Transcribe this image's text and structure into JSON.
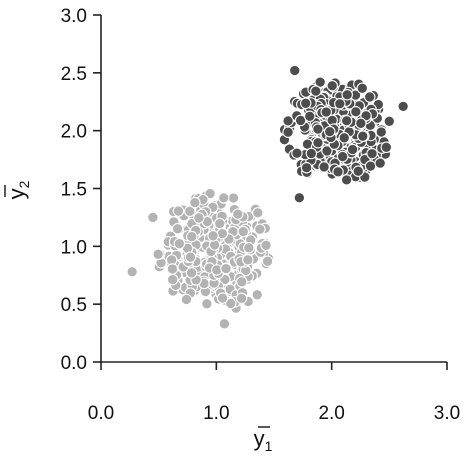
{
  "chart_data": {
    "type": "scatter",
    "title": "",
    "xlabel": "y",
    "xlabel_subscript": "1",
    "ylabel": "y",
    "ylabel_subscript": "2",
    "xlim": [
      0.0,
      3.0
    ],
    "ylim": [
      0.0,
      3.0
    ],
    "x_ticks": [
      "0.0",
      "1.0",
      "2.0",
      "3.0"
    ],
    "y_ticks": [
      "0.0",
      "0.5",
      "1.0",
      "1.5",
      "2.0",
      "2.5",
      "3.0"
    ],
    "grid": false,
    "legend": "none",
    "series": [
      {
        "color": "#b3b3b3",
        "center": [
          1.0,
          0.95
        ],
        "spread": [
          0.24,
          0.24
        ],
        "count": 420,
        "outliers": [
          [
            0.27,
            0.78
          ],
          [
            1.07,
            0.33
          ],
          [
            0.45,
            1.25
          ]
        ]
      },
      {
        "color": "#4d4d4d",
        "center": [
          2.05,
          2.0
        ],
        "spread": [
          0.22,
          0.22
        ],
        "count": 420,
        "outliers": [
          [
            1.68,
            2.52
          ],
          [
            2.62,
            2.21
          ],
          [
            1.72,
            1.42
          ]
        ]
      }
    ],
    "marker_edge": "#ffffff"
  }
}
